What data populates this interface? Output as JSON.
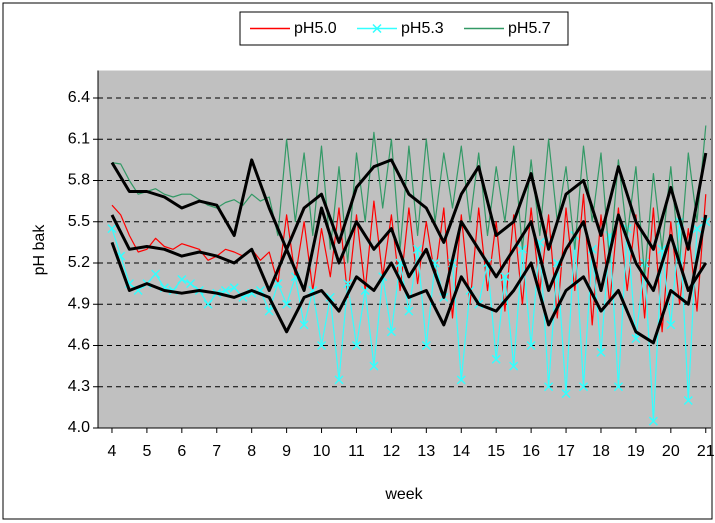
{
  "chart_data": {
    "type": "line",
    "xlabel": "week",
    "ylabel": "pH bak",
    "x": [
      4,
      4.25,
      4.5,
      4.75,
      5,
      5.25,
      5.5,
      5.75,
      6,
      6.25,
      6.5,
      6.75,
      7,
      7.25,
      7.5,
      7.75,
      8,
      8.25,
      8.5,
      8.75,
      9,
      9.25,
      9.5,
      9.75,
      10,
      10.25,
      10.5,
      10.75,
      11,
      11.25,
      11.5,
      11.75,
      12,
      12.25,
      12.5,
      12.75,
      13,
      13.25,
      13.5,
      13.75,
      14,
      14.25,
      14.5,
      14.75,
      15,
      15.25,
      15.5,
      15.75,
      16,
      16.25,
      16.5,
      16.75,
      17,
      17.25,
      17.5,
      17.75,
      18,
      18.25,
      18.5,
      18.75,
      19,
      19.25,
      19.5,
      19.75,
      20,
      20.25,
      20.5,
      20.75,
      21
    ],
    "series": [
      {
        "name": "pH5.0",
        "color": "#ff0000",
        "values": [
          5.62,
          5.55,
          5.4,
          5.28,
          5.3,
          5.38,
          5.32,
          5.3,
          5.34,
          5.32,
          5.3,
          5.22,
          5.25,
          5.3,
          5.28,
          5.25,
          5.3,
          5.22,
          5.28,
          5.05,
          5.55,
          5.1,
          5.5,
          5.0,
          5.45,
          5.1,
          5.6,
          4.95,
          5.55,
          5.0,
          5.65,
          5.1,
          5.55,
          5.0,
          5.6,
          5.05,
          5.5,
          5.1,
          5.6,
          4.8,
          5.55,
          4.9,
          5.6,
          5.0,
          5.5,
          4.85,
          5.55,
          4.9,
          5.6,
          5.0,
          5.55,
          4.8,
          5.6,
          5.0,
          5.7,
          4.75,
          5.55,
          4.9,
          5.6,
          5.0,
          5.55,
          4.8,
          5.6,
          4.7,
          5.5,
          4.9,
          5.45,
          4.85,
          5.7
        ]
      },
      {
        "name": "pH5.3",
        "color": "#33ffff",
        "marker": "x",
        "values": [
          5.45,
          5.25,
          5.05,
          5.0,
          5.05,
          5.12,
          5.02,
          5.0,
          5.08,
          5.05,
          5.0,
          4.9,
          4.98,
          5.0,
          5.02,
          4.95,
          4.98,
          5.0,
          4.85,
          5.05,
          4.9,
          5.1,
          4.75,
          5.0,
          4.6,
          4.95,
          4.35,
          5.05,
          4.6,
          5.0,
          4.45,
          5.1,
          4.7,
          5.2,
          4.85,
          5.3,
          4.6,
          5.2,
          4.95,
          5.2,
          4.35,
          5.0,
          4.9,
          5.2,
          4.5,
          5.1,
          4.45,
          5.3,
          4.6,
          5.35,
          4.3,
          5.2,
          4.25,
          5.4,
          4.3,
          5.3,
          4.55,
          5.4,
          4.3,
          5.45,
          4.65,
          5.2,
          4.05,
          5.3,
          4.75,
          5.5,
          4.2,
          5.45,
          5.5
        ]
      },
      {
        "name": "pH5.7",
        "color": "#339966",
        "values": [
          5.93,
          5.92,
          5.8,
          5.7,
          5.72,
          5.74,
          5.7,
          5.68,
          5.7,
          5.7,
          5.66,
          5.62,
          5.6,
          5.64,
          5.66,
          5.62,
          5.7,
          5.65,
          5.68,
          5.4,
          6.1,
          5.5,
          6.0,
          5.4,
          6.05,
          5.3,
          5.9,
          5.2,
          6.0,
          5.5,
          6.15,
          5.6,
          6.1,
          5.3,
          6.05,
          5.4,
          6.1,
          5.5,
          6.0,
          5.6,
          6.05,
          5.5,
          6.0,
          5.4,
          5.9,
          5.5,
          6.05,
          5.3,
          5.95,
          5.4,
          6.1,
          5.5,
          5.9,
          5.3,
          6.05,
          5.5,
          6.0,
          5.2,
          5.95,
          5.4,
          5.9,
          5.1,
          5.85,
          5.3,
          5.9,
          5.2,
          6.0,
          5.5,
          6.2
        ]
      },
      {
        "color": "#000000",
        "x": [
          4,
          4.5,
          5,
          5.5,
          6,
          6.5,
          7,
          7.5,
          8,
          8.5,
          9,
          9.5,
          10,
          10.5,
          11,
          11.5,
          12,
          12.5,
          13,
          13.5,
          14,
          14.5,
          15,
          15.5,
          16,
          16.5,
          17,
          17.5,
          18,
          18.5,
          19,
          19.5,
          20,
          20.5,
          21
        ],
        "values": [
          5.93,
          5.72,
          5.72,
          5.68,
          5.6,
          5.65,
          5.62,
          5.4,
          5.95,
          5.6,
          5.3,
          5.6,
          5.7,
          5.35,
          5.75,
          5.9,
          5.95,
          5.7,
          5.6,
          5.35,
          5.7,
          5.9,
          5.4,
          5.5,
          5.85,
          5.3,
          5.7,
          5.8,
          5.4,
          5.9,
          5.5,
          5.3,
          5.75,
          5.3,
          6.0
        ]
      },
      {
        "color": "#000000",
        "x": [
          4,
          4.5,
          5,
          5.5,
          6,
          6.5,
          7,
          7.5,
          8,
          8.5,
          9,
          9.5,
          10,
          10.5,
          11,
          11.5,
          12,
          12.5,
          13,
          13.5,
          14,
          14.5,
          15,
          15.5,
          16,
          16.5,
          17,
          17.5,
          18,
          18.5,
          19,
          19.5,
          20,
          20.5,
          21
        ],
        "values": [
          5.55,
          5.3,
          5.32,
          5.3,
          5.25,
          5.28,
          5.25,
          5.2,
          5.3,
          5.0,
          5.3,
          5.0,
          5.6,
          5.2,
          5.5,
          5.3,
          5.45,
          5.1,
          5.3,
          4.95,
          5.5,
          5.3,
          5.1,
          5.3,
          5.5,
          5.0,
          5.3,
          5.5,
          5.0,
          5.55,
          5.2,
          5.0,
          5.4,
          5.0,
          5.2
        ]
      },
      {
        "color": "#000000",
        "x": [
          4,
          4.5,
          5,
          5.5,
          6,
          6.5,
          7,
          7.5,
          8,
          8.5,
          9,
          9.5,
          10,
          10.5,
          11,
          11.5,
          12,
          12.5,
          13,
          13.5,
          14,
          14.5,
          15,
          15.5,
          16,
          16.5,
          17,
          17.5,
          18,
          18.5,
          19,
          19.5,
          20,
          20.5,
          21
        ],
        "values": [
          5.35,
          5.0,
          5.05,
          5.0,
          4.98,
          5.0,
          4.98,
          4.95,
          5.0,
          4.95,
          4.7,
          4.95,
          5.0,
          4.85,
          5.1,
          5.0,
          5.2,
          4.95,
          5.0,
          4.75,
          5.1,
          4.9,
          4.85,
          5.0,
          5.2,
          4.75,
          5.0,
          5.1,
          4.85,
          5.0,
          4.7,
          4.62,
          5.0,
          4.9,
          5.55
        ]
      }
    ],
    "xlim": [
      3.6,
      21.15
    ],
    "xticks": [
      4,
      5,
      6,
      7,
      8,
      9,
      10,
      11,
      12,
      13,
      14,
      15,
      16,
      17,
      18,
      19,
      20,
      21
    ],
    "ylim": [
      4.0,
      6.6
    ],
    "yticks": [
      {
        "value": 4,
        "label": "4.0"
      },
      4.3,
      4.6,
      4.9,
      5.2,
      5.5,
      5.8,
      6.1,
      6.4
    ],
    "grid": true,
    "legend": "top"
  }
}
